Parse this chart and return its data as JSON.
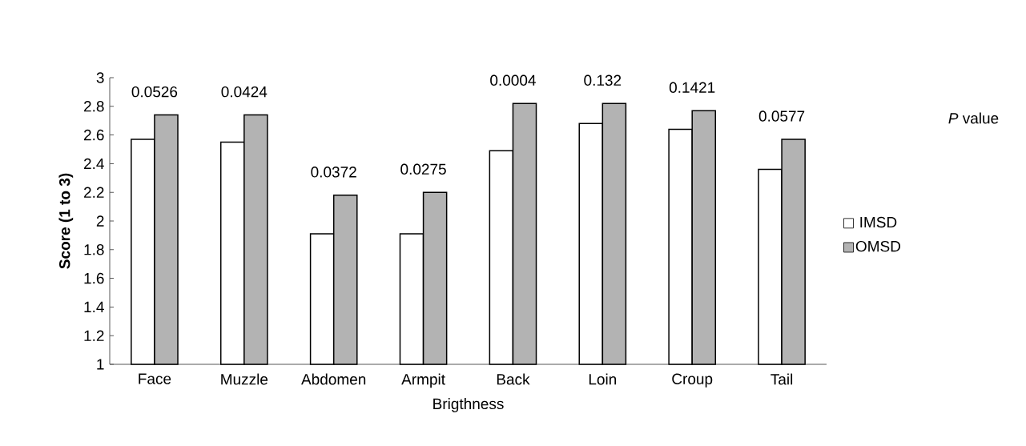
{
  "chart_data": {
    "type": "bar",
    "xlabel": "Brigthness",
    "ylabel": "**Score (1 to 3)**",
    "categories": [
      "Face",
      "Muzzle",
      "Abdomen",
      "Armpit",
      "Back",
      "Loin",
      "Croup",
      "Tail"
    ],
    "series": [
      {
        "name": "IMSD",
        "color": "#ffffff",
        "values": [
          2.57,
          2.55,
          1.91,
          1.91,
          2.49,
          2.68,
          2.64,
          2.36
        ]
      },
      {
        "name": "OMSD",
        "color": "#b3b3b3",
        "values": [
          2.74,
          2.74,
          2.18,
          2.2,
          2.82,
          2.82,
          2.77,
          2.57
        ]
      }
    ],
    "ylim": [
      1,
      3
    ],
    "yticks": [
      1,
      1.2,
      1.4,
      1.6,
      1.8,
      2,
      2.2,
      2.4,
      2.6,
      2.8,
      3
    ],
    "grid": false,
    "legend": "right",
    "annotations": [
      "0.0526",
      "0.0424",
      "0.0372",
      "0.0275",
      "0.0004",
      "0.132",
      "0.1421",
      "0.0577",
      "*P* value"
    ]
  }
}
